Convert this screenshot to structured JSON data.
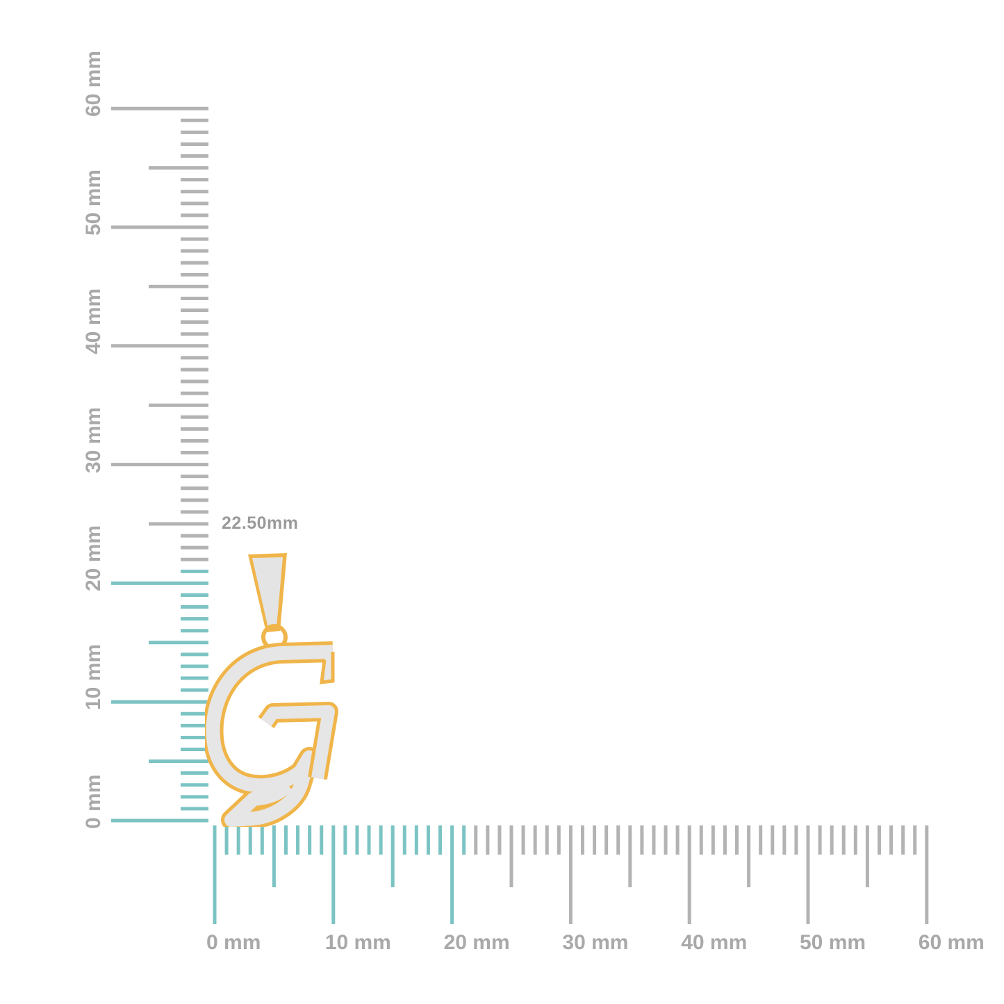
{
  "measurement_label": "22.50mm",
  "horizontal_ruler": {
    "unit": "mm",
    "range": [
      0,
      60
    ],
    "labels": [
      "0 mm",
      "10 mm",
      "20 mm",
      "30 mm",
      "40 mm",
      "50 mm",
      "60 mm"
    ],
    "highlight_until_mm": 21
  },
  "vertical_ruler": {
    "unit": "mm",
    "range": [
      0,
      60
    ],
    "labels": [
      "0 mm",
      "10 mm",
      "20 mm",
      "30 mm",
      "40 mm",
      "50 mm",
      "60 mm"
    ],
    "highlight_until_mm": 21
  },
  "colors": {
    "highlight": "#7cc3c3",
    "tick": "#b3b3b3",
    "label": "#a9a9a9",
    "gold": "#f0b54a",
    "pave": "#e6e6e6"
  },
  "product": {
    "letter": "G",
    "type": "pendant"
  }
}
